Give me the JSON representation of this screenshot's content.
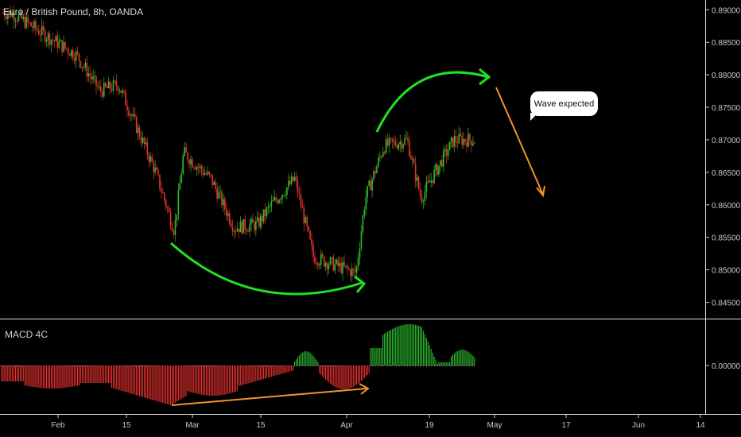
{
  "chart_data": [
    {
      "type": "candlestick",
      "title": "Euro / British Pound, 8h, OANDA",
      "y_ticks": [
        "0.89000",
        "0.88500",
        "0.88000",
        "0.87500",
        "0.87000",
        "0.86500",
        "0.86000",
        "0.85500",
        "0.85000",
        "0.84500"
      ],
      "y_tick_values": [
        0.89,
        0.885,
        0.88,
        0.875,
        0.87,
        0.865,
        0.86,
        0.855,
        0.85,
        0.845
      ],
      "ylim": [
        0.8425,
        0.8915
      ],
      "x_ticks": [
        "Feb",
        "15",
        "Mar",
        "15",
        "Apr",
        "19",
        "May",
        "17",
        "Jun",
        "14"
      ],
      "key_points": [
        {
          "date": "Jan 22",
          "close": 0.8895
        },
        {
          "date": "Feb 5",
          "close": 0.883
        },
        {
          "date": "Feb 10",
          "close": 0.8775
        },
        {
          "date": "Feb 14",
          "close": 0.8785
        },
        {
          "date": "Feb 22",
          "close": 0.865
        },
        {
          "date": "Feb 26",
          "close": 0.856
        },
        {
          "date": "Feb 28",
          "close": 0.868
        },
        {
          "date": "Mar 5",
          "close": 0.864
        },
        {
          "date": "Mar 10",
          "close": 0.8565
        },
        {
          "date": "Mar 15",
          "close": 0.857
        },
        {
          "date": "Mar 18",
          "close": 0.86
        },
        {
          "date": "Mar 23",
          "close": 0.864
        },
        {
          "date": "Mar 27",
          "close": 0.852
        },
        {
          "date": "Apr 3",
          "close": 0.8495
        },
        {
          "date": "Apr 5",
          "close": 0.861
        },
        {
          "date": "Apr 9",
          "close": 0.869
        },
        {
          "date": "Apr 14",
          "close": 0.87
        },
        {
          "date": "Apr 17",
          "close": 0.861
        },
        {
          "date": "Apr 20",
          "close": 0.865
        },
        {
          "date": "Apr 24",
          "close": 0.87
        },
        {
          "date": "Apr 26",
          "close": 0.87
        }
      ],
      "annotation": "Wave expected",
      "colors": {
        "up": "#2ebd2e",
        "down": "#e8322e",
        "arc": "#22e022",
        "forecast": "#f4922a"
      }
    },
    {
      "type": "histogram",
      "name": "MACD 4C",
      "y_ticks": [
        "0.00000"
      ],
      "colors": {
        "positive": "#2ebd2e",
        "negative": "#e8322e",
        "divergence": "#f4922a"
      }
    }
  ]
}
